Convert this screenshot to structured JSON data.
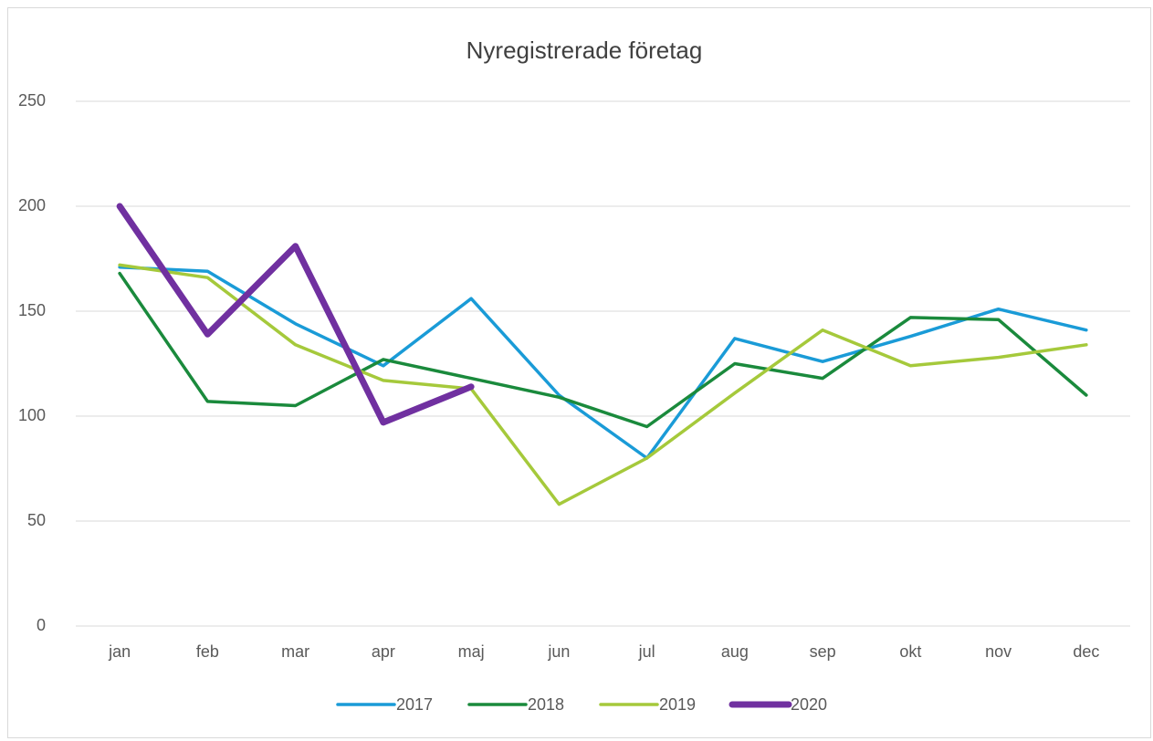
{
  "chart_data": {
    "type": "line",
    "title": "Nyregistrerade företag",
    "categories": [
      "jan",
      "feb",
      "mar",
      "apr",
      "maj",
      "jun",
      "jul",
      "aug",
      "sep",
      "okt",
      "nov",
      "dec"
    ],
    "series": [
      {
        "name": "2017",
        "color": "#1a9bd7",
        "values": [
          171,
          169,
          144,
          124,
          156,
          110,
          80,
          137,
          126,
          138,
          151,
          141
        ]
      },
      {
        "name": "2018",
        "color": "#1a8a3c",
        "values": [
          168,
          107,
          105,
          127,
          118,
          109,
          95,
          125,
          118,
          147,
          146,
          110
        ]
      },
      {
        "name": "2019",
        "color": "#a5c93b",
        "values": [
          172,
          166,
          134,
          117,
          113,
          58,
          80,
          111,
          141,
          124,
          128,
          134
        ]
      },
      {
        "name": "2020",
        "color": "#7030a0",
        "values": [
          200,
          139,
          181,
          97,
          114,
          null,
          null,
          null,
          null,
          null,
          null,
          null
        ]
      }
    ],
    "ylim": [
      0,
      250
    ],
    "yticks": [
      0,
      50,
      100,
      150,
      200,
      250
    ],
    "grid": true,
    "legend": "bottom"
  }
}
